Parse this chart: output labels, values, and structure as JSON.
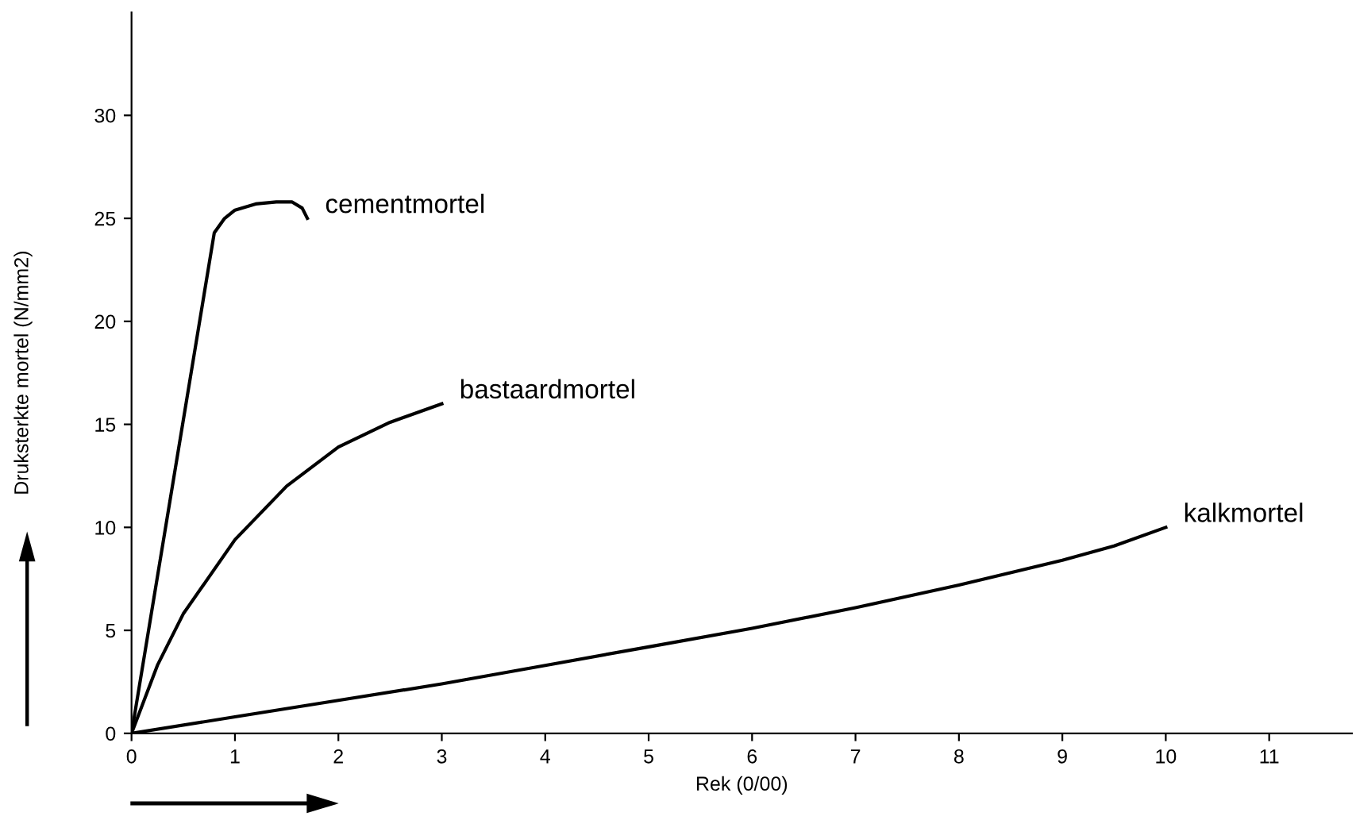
{
  "chart_data": {
    "type": "line",
    "xlabel": "Rek (0/00)",
    "ylabel": "Druksterkte mortel (N/mm2)",
    "xlim": [
      0,
      11.8
    ],
    "ylim": [
      0,
      35
    ],
    "xticks": [
      0,
      1,
      2,
      3,
      4,
      5,
      6,
      7,
      8,
      9,
      10,
      11
    ],
    "yticks": [
      0,
      5,
      10,
      15,
      20,
      25,
      30
    ],
    "grid": false,
    "legend": false,
    "marker": "none",
    "line_style": "solid",
    "series": [
      {
        "name": "cementmortel",
        "color": "#000000",
        "x": [
          0,
          0.8,
          0.9,
          1.0,
          1.2,
          1.4,
          1.55,
          1.65,
          1.7
        ],
        "values": [
          0,
          24.3,
          25.0,
          25.4,
          25.7,
          25.8,
          25.8,
          25.5,
          25.0
        ]
      },
      {
        "name": "bastaardmortel",
        "color": "#000000",
        "x": [
          0,
          0.25,
          0.5,
          1,
          1.5,
          2,
          2.5,
          3
        ],
        "values": [
          0,
          3.3,
          5.8,
          9.4,
          12.0,
          13.9,
          15.1,
          16.0
        ]
      },
      {
        "name": "kalkmortel",
        "color": "#000000",
        "x": [
          0,
          1,
          2,
          3,
          4,
          5,
          6,
          7,
          8,
          9,
          9.5,
          10
        ],
        "values": [
          0,
          0.8,
          1.6,
          2.4,
          3.3,
          4.2,
          5.1,
          6.1,
          7.2,
          8.4,
          9.1,
          10.0
        ]
      }
    ]
  }
}
